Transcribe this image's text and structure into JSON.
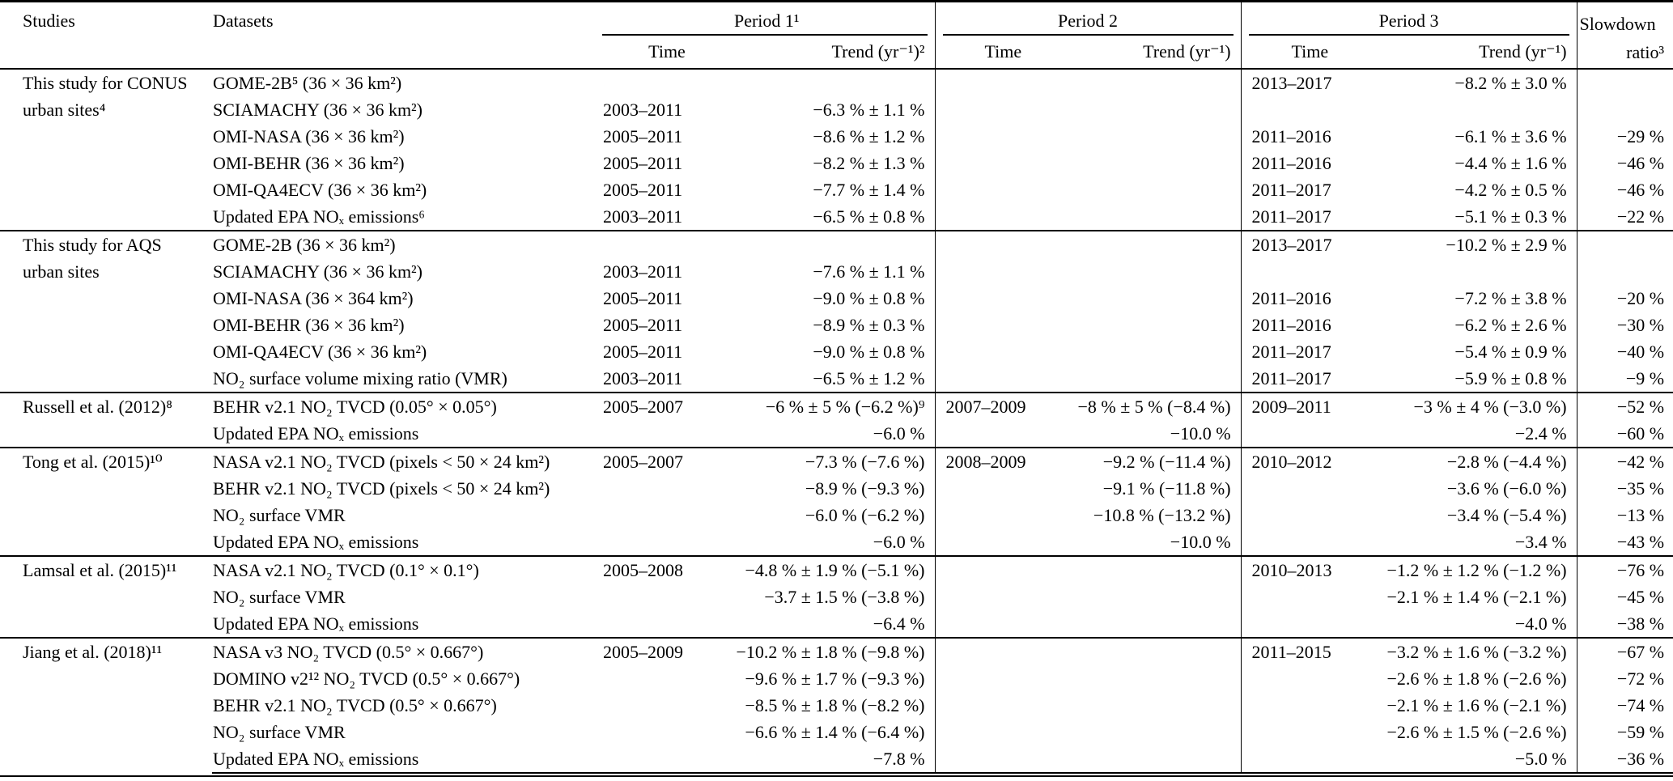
{
  "page": {
    "background": "#ffffff",
    "rule_color": "#000000"
  },
  "table": {
    "header": {
      "studies": "Studies",
      "datasets": "Datasets",
      "period1": "Period 1¹",
      "period2": "Period 2",
      "period3": "Period 3",
      "slowdown_line1": "Slowdown",
      "slowdown_line2": "ratio³",
      "time": "Time",
      "trend_p1": "Trend (yr⁻¹)²",
      "trend": "Trend (yr⁻¹)"
    },
    "blocks": [
      {
        "study": "This study for CONUS urban sites⁴",
        "rows": [
          {
            "dataset": "GOME-2B⁵ (36 × 36 km²)",
            "p1_time": "",
            "p1_trend": "",
            "p2_time": "",
            "p2_trend": "",
            "p3_time": "2013–2017",
            "p3_trend": "−8.2 % ± 3.0 %",
            "ratio": ""
          },
          {
            "dataset": "SCIAMACHY (36 × 36 km²)",
            "p1_time": "2003–2011",
            "p1_trend": "−6.3 % ± 1.1 %",
            "p2_time": "",
            "p2_trend": "",
            "p3_time": "",
            "p3_trend": "",
            "ratio": ""
          },
          {
            "dataset": "OMI-NASA (36 × 36 km²)",
            "p1_time": "2005–2011",
            "p1_trend": "−8.6 % ± 1.2 %",
            "p2_time": "",
            "p2_trend": "",
            "p3_time": "2011–2016",
            "p3_trend": "−6.1 % ± 3.6 %",
            "ratio": "−29 %"
          },
          {
            "dataset": "OMI-BEHR (36 × 36 km²)",
            "p1_time": "2005–2011",
            "p1_trend": "−8.2 % ± 1.3 %",
            "p2_time": "",
            "p2_trend": "",
            "p3_time": "2011–2016",
            "p3_trend": "−4.4 % ± 1.6 %",
            "ratio": "−46 %"
          },
          {
            "dataset": "OMI-QA4ECV (36 × 36 km²)",
            "p1_time": "2005–2011",
            "p1_trend": "−7.7 % ± 1.4 %",
            "p2_time": "",
            "p2_trend": "",
            "p3_time": "2011–2017",
            "p3_trend": "−4.2 % ± 0.5 %",
            "ratio": "−46 %"
          },
          {
            "dataset": "Updated EPA NOₓ emissions⁶",
            "p1_time": "2003–2011",
            "p1_trend": "−6.5 % ± 0.8 %",
            "p2_time": "",
            "p2_trend": "",
            "p3_time": "2011–2017",
            "p3_trend": "−5.1 % ± 0.3 %",
            "ratio": "−22 %"
          }
        ]
      },
      {
        "study": "This study for AQS urban sites",
        "rows": [
          {
            "dataset": "GOME-2B (36 × 36 km²)",
            "p1_time": "",
            "p1_trend": "",
            "p2_time": "",
            "p2_trend": "",
            "p3_time": "2013–2017",
            "p3_trend": "−10.2 % ± 2.9 %",
            "ratio": ""
          },
          {
            "dataset": "SCIAMACHY (36 × 36 km²)",
            "p1_time": "2003–2011",
            "p1_trend": "−7.6 % ± 1.1 %",
            "p2_time": "",
            "p2_trend": "",
            "p3_time": "",
            "p3_trend": "",
            "ratio": ""
          },
          {
            "dataset": "OMI-NASA (36 × 364 km²)",
            "p1_time": "2005–2011",
            "p1_trend": "−9.0 % ± 0.8 %",
            "p2_time": "",
            "p2_trend": "",
            "p3_time": "2011–2016",
            "p3_trend": "−7.2 % ± 3.8 %",
            "ratio": "−20 %"
          },
          {
            "dataset": "OMI-BEHR (36 × 36 km²)",
            "p1_time": "2005–2011",
            "p1_trend": "−8.9 % ± 0.3 %",
            "p2_time": "",
            "p2_trend": "",
            "p3_time": "2011–2016",
            "p3_trend": "−6.2 % ± 2.6 %",
            "ratio": "−30 %"
          },
          {
            "dataset": "OMI-QA4ECV (36 × 36 km²)",
            "p1_time": "2005–2011",
            "p1_trend": "−9.0 % ± 0.8 %",
            "p2_time": "",
            "p2_trend": "",
            "p3_time": "2011–2017",
            "p3_trend": "−5.4 % ± 0.9 %",
            "ratio": "−40 %"
          },
          {
            "dataset": "NO₂ surface volume mixing ratio (VMR)",
            "p1_time": "2003–2011",
            "p1_trend": "−6.5 % ± 1.2 %",
            "p2_time": "",
            "p2_trend": "",
            "p3_time": "2011–2017",
            "p3_trend": "−5.9 % ± 0.8 %",
            "ratio": "−9 %"
          }
        ]
      },
      {
        "study": "Russell et al. (2012)⁸",
        "rows": [
          {
            "dataset": "BEHR v2.1 NO₂ TVCD (0.05° × 0.05°)",
            "p1_time": "2005–2007",
            "p1_trend": "−6 % ± 5 % (−6.2 %)⁹",
            "p2_time": "2007–2009",
            "p2_trend": "−8 % ± 5 % (−8.4 %)",
            "p3_time": "2009–2011",
            "p3_trend": "−3 % ± 4 % (−3.0 %)",
            "ratio": "−52 %"
          },
          {
            "dataset": "Updated EPA NOₓ emissions",
            "p1_time": "",
            "p1_trend": "−6.0 %",
            "p2_time": "",
            "p2_trend": "−10.0 %",
            "p3_time": "",
            "p3_trend": "−2.4 %",
            "ratio": "−60 %"
          }
        ]
      },
      {
        "study": "Tong et al. (2015)¹⁰",
        "rows": [
          {
            "dataset": "NASA v2.1 NO₂ TVCD (pixels < 50 × 24 km²)",
            "p1_time": "2005–2007",
            "p1_trend": "−7.3 % (−7.6 %)",
            "p2_time": "2008–2009",
            "p2_trend": "−9.2 % (−11.4 %)",
            "p3_time": "2010–2012",
            "p3_trend": "−2.8 % (−4.4 %)",
            "ratio": "−42 %"
          },
          {
            "dataset": "BEHR v2.1 NO₂ TVCD (pixels < 50 × 24 km²)",
            "p1_time": "",
            "p1_trend": "−8.9 % (−9.3 %)",
            "p2_time": "",
            "p2_trend": "−9.1 % (−11.8 %)",
            "p3_time": "",
            "p3_trend": "−3.6 % (−6.0 %)",
            "ratio": "−35 %"
          },
          {
            "dataset": "NO₂ surface VMR",
            "p1_time": "",
            "p1_trend": "−6.0 % (−6.2 %)",
            "p2_time": "",
            "p2_trend": "−10.8 % (−13.2 %)",
            "p3_time": "",
            "p3_trend": "−3.4 % (−5.4 %)",
            "ratio": "−13 %"
          },
          {
            "dataset": "Updated EPA NOₓ emissions",
            "p1_time": "",
            "p1_trend": "−6.0 %",
            "p2_time": "",
            "p2_trend": "−10.0 %",
            "p3_time": "",
            "p3_trend": "−3.4 %",
            "ratio": "−43 %"
          }
        ]
      },
      {
        "study": "Lamsal et al. (2015)¹¹",
        "rows": [
          {
            "dataset": "NASA v2.1 NO₂ TVCD (0.1° × 0.1°)",
            "p1_time": "2005–2008",
            "p1_trend": "−4.8 % ± 1.9 % (−5.1 %)",
            "p2_time": "",
            "p2_trend": "",
            "p3_time": "2010–2013",
            "p3_trend": "−1.2 % ± 1.2 % (−1.2 %)",
            "ratio": "−76 %"
          },
          {
            "dataset": "NO₂ surface VMR",
            "p1_time": "",
            "p1_trend": "−3.7 ± 1.5 % (−3.8 %)",
            "p2_time": "",
            "p2_trend": "",
            "p3_time": "",
            "p3_trend": "−2.1 % ± 1.4 % (−2.1 %)",
            "ratio": "−45 %"
          },
          {
            "dataset": "Updated EPA NOₓ emissions",
            "p1_time": "",
            "p1_trend": "−6.4 %",
            "p2_time": "",
            "p2_trend": "",
            "p3_time": "",
            "p3_trend": "−4.0 %",
            "ratio": "−38 %"
          }
        ]
      },
      {
        "study": "Jiang et al. (2018)¹¹",
        "rows": [
          {
            "dataset": "NASA v3 NO₂ TVCD (0.5° × 0.667°)",
            "p1_time": "2005–2009",
            "p1_trend": "−10.2 % ± 1.8 % (−9.8 %)",
            "p2_time": "",
            "p2_trend": "",
            "p3_time": "2011–2015",
            "p3_trend": "−3.2 % ± 1.6 % (−3.2 %)",
            "ratio": "−67 %"
          },
          {
            "dataset": "DOMINO v2¹² NO₂ TVCD (0.5° × 0.667°)",
            "p1_time": "",
            "p1_trend": "−9.6 % ± 1.7 % (−9.3 %)",
            "p2_time": "",
            "p2_trend": "",
            "p3_time": "",
            "p3_trend": "−2.6 % ± 1.8 % (−2.6 %)",
            "ratio": "−72 %"
          },
          {
            "dataset": "BEHR v2.1 NO₂ TVCD (0.5° × 0.667°)",
            "p1_time": "",
            "p1_trend": "−8.5 % ± 1.8 % (−8.2 %)",
            "p2_time": "",
            "p2_trend": "",
            "p3_time": "",
            "p3_trend": "−2.1 % ± 1.6 % (−2.1 %)",
            "ratio": "−74 %"
          },
          {
            "dataset": "NO₂ surface VMR",
            "p1_time": "",
            "p1_trend": "−6.6 % ± 1.4 % (−6.4 %)",
            "p2_time": "",
            "p2_trend": "",
            "p3_time": "",
            "p3_trend": "−2.6 % ± 1.5 % (−2.6 %)",
            "ratio": "−59 %"
          },
          {
            "dataset": "Updated EPA NOₓ emissions",
            "p1_time": "",
            "p1_trend": "−7.8 %",
            "p2_time": "",
            "p2_trend": "",
            "p3_time": "",
            "p3_trend": "−5.0 %",
            "ratio": "−36 %"
          }
        ]
      }
    ]
  }
}
